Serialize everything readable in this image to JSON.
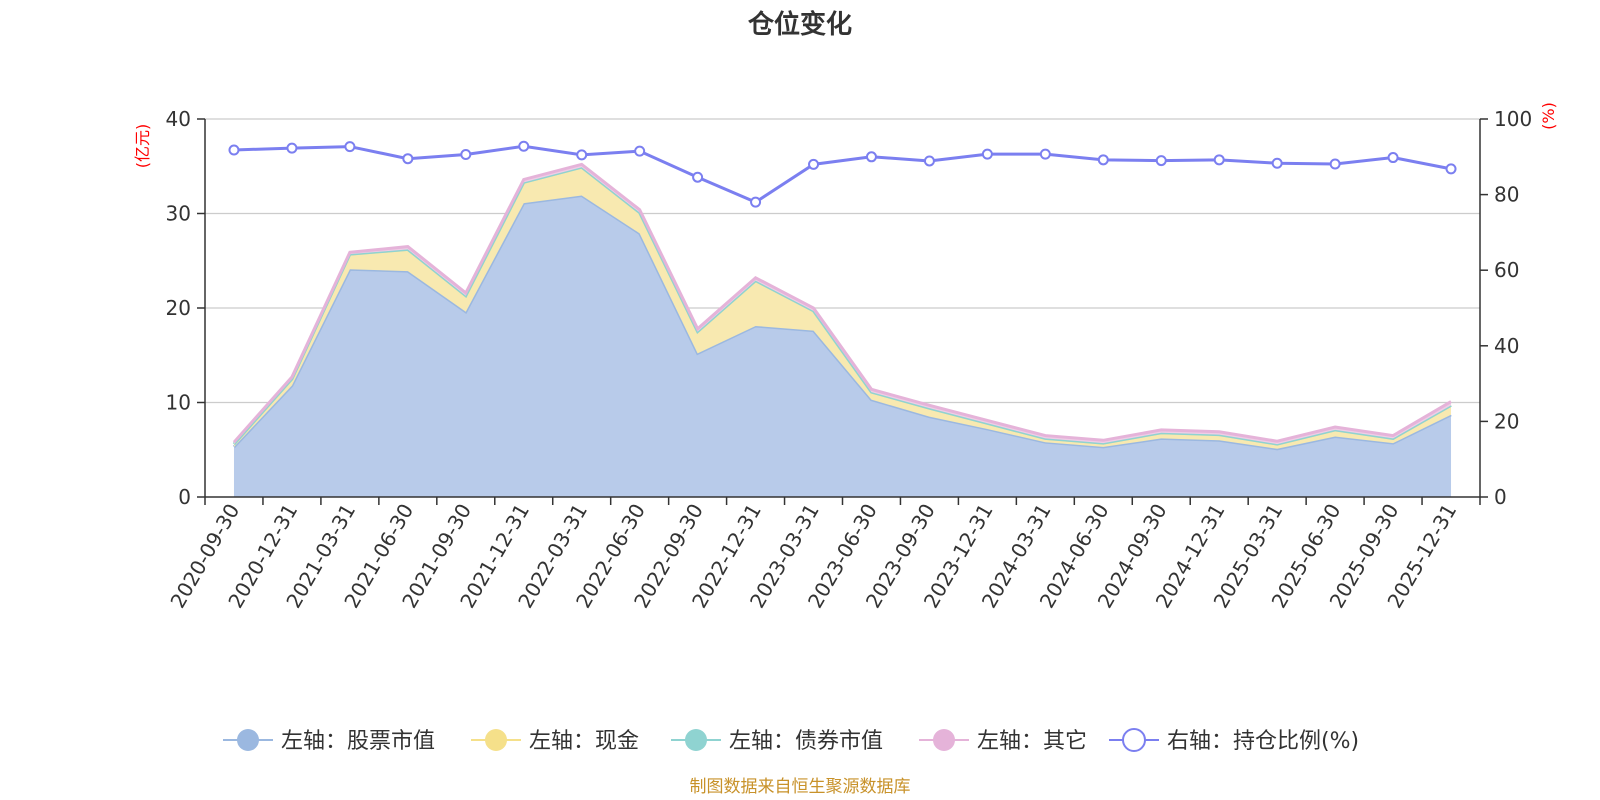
{
  "chart_data": {
    "type": "area",
    "title": "仓位变化",
    "categories": [
      "2020-09-30",
      "2020-12-31",
      "2021-03-31",
      "2021-06-30",
      "2021-09-30",
      "2021-12-31",
      "2022-03-31",
      "2022-06-30",
      "2022-09-30",
      "2022-12-31",
      "2023-03-31",
      "2023-06-30",
      "2023-09-30",
      "2023-12-31",
      "2024-03-31",
      "2024-06-30",
      "2024-09-30",
      "2024-12-31",
      "2025-03-31",
      "2025-06-30",
      "2025-09-30",
      "2025-12-31"
    ],
    "left_axis": {
      "unit": "(亿元)",
      "min": 0,
      "max": 40,
      "ticks": [
        0,
        10,
        20,
        30,
        40
      ]
    },
    "right_axis": {
      "unit": "(%)",
      "min": 0,
      "max": 100,
      "ticks": [
        0,
        20,
        40,
        60,
        80,
        100
      ]
    },
    "series": [
      {
        "name": "左轴：股票市值",
        "axis": "left",
        "kind": "stacked-area",
        "color": "#9bb8e0",
        "fill": "#b8cbea",
        "values": [
          5.3,
          11.8,
          24.1,
          23.9,
          19.6,
          31.1,
          31.9,
          27.9,
          15.2,
          18.1,
          17.6,
          10.3,
          8.5,
          7.2,
          5.8,
          5.3,
          6.2,
          6.0,
          5.1,
          6.4,
          5.7,
          8.7
        ]
      },
      {
        "name": "左轴：现金",
        "axis": "left",
        "kind": "stacked-area",
        "color": "#f5e08a",
        "fill": "#f8e9b0",
        "values": [
          0.3,
          0.7,
          1.6,
          2.3,
          1.7,
          2.2,
          3.0,
          2.2,
          2.3,
          4.8,
          2.1,
          0.8,
          0.9,
          0.6,
          0.4,
          0.4,
          0.6,
          0.6,
          0.5,
          0.7,
          0.5,
          1.0
        ]
      },
      {
        "name": "左轴：债券市值",
        "axis": "left",
        "kind": "stacked-area",
        "color": "#8fd3d1",
        "fill": "#b3e3e1",
        "values": [
          0,
          0,
          0,
          0,
          0,
          0,
          0,
          0,
          0,
          0,
          0,
          0,
          0,
          0,
          0,
          0,
          0,
          0,
          0,
          0,
          0,
          0
        ]
      },
      {
        "name": "左轴：其它",
        "axis": "left",
        "kind": "stacked-area",
        "color": "#e5b3d9",
        "fill": "#efcde6",
        "values": [
          0.2,
          0.2,
          0.2,
          0.3,
          0.3,
          0.3,
          0.3,
          0.3,
          0.3,
          0.3,
          0.3,
          0.3,
          0.3,
          0.3,
          0.3,
          0.3,
          0.3,
          0.3,
          0.3,
          0.3,
          0.3,
          0.4
        ]
      },
      {
        "name": "右轴：持仓比例(%)",
        "axis": "right",
        "kind": "line",
        "color": "#7b7ff0",
        "values": [
          91.8,
          92.3,
          92.7,
          89.5,
          90.6,
          92.8,
          90.5,
          91.5,
          84.6,
          78.0,
          88.0,
          90.0,
          88.9,
          90.7,
          90.7,
          89.2,
          89.0,
          89.2,
          88.3,
          88.1,
          89.8,
          86.8
        ]
      }
    ],
    "grid": true,
    "legend_position": "bottom",
    "source_note": "制图数据来自恒生聚源数据库"
  }
}
